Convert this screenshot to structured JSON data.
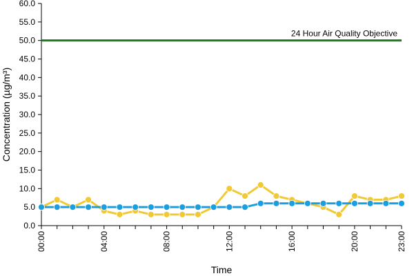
{
  "chart_data": {
    "type": "line",
    "title": "",
    "xlabel": "Time",
    "ylabel": "Concentration (µg/m³)",
    "ylim": [
      0,
      60
    ],
    "y_ticks": [
      "0.0",
      "5.0",
      "10.0",
      "15.0",
      "20.0",
      "25.0",
      "30.0",
      "35.0",
      "40.0",
      "45.0",
      "50.0",
      "55.0",
      "60.0"
    ],
    "x_tick_labels": [
      "00:00",
      "04:00",
      "08:00",
      "12:00",
      "16:00",
      "20:00",
      "23:00"
    ],
    "x_tick_hours": [
      0,
      4,
      8,
      12,
      16,
      20,
      23
    ],
    "x": [
      "00:00",
      "01:00",
      "02:00",
      "03:00",
      "04:00",
      "05:00",
      "06:00",
      "07:00",
      "08:00",
      "09:00",
      "10:00",
      "11:00",
      "12:00",
      "13:00",
      "14:00",
      "15:00",
      "16:00",
      "17:00",
      "18:00",
      "19:00",
      "20:00",
      "21:00",
      "22:00",
      "23:00"
    ],
    "series": [
      {
        "color": "#f0c935",
        "values": [
          5,
          7,
          5,
          7,
          4,
          3,
          4,
          3,
          3,
          3,
          3,
          5,
          10,
          8,
          11,
          8,
          7,
          6,
          5,
          3,
          8,
          7,
          7,
          8
        ]
      },
      {
        "color": "#1a9ee0",
        "values": [
          5,
          5,
          5,
          5,
          5,
          5,
          5,
          5,
          5,
          5,
          5,
          5,
          5,
          5,
          6,
          6,
          6,
          6,
          6,
          6,
          6,
          6,
          6,
          6
        ]
      }
    ],
    "reference_line": {
      "label": "24 Hour Air Quality Objective",
      "value": 50,
      "color": "#1e7a1e"
    },
    "grid": false,
    "legend": "none"
  }
}
